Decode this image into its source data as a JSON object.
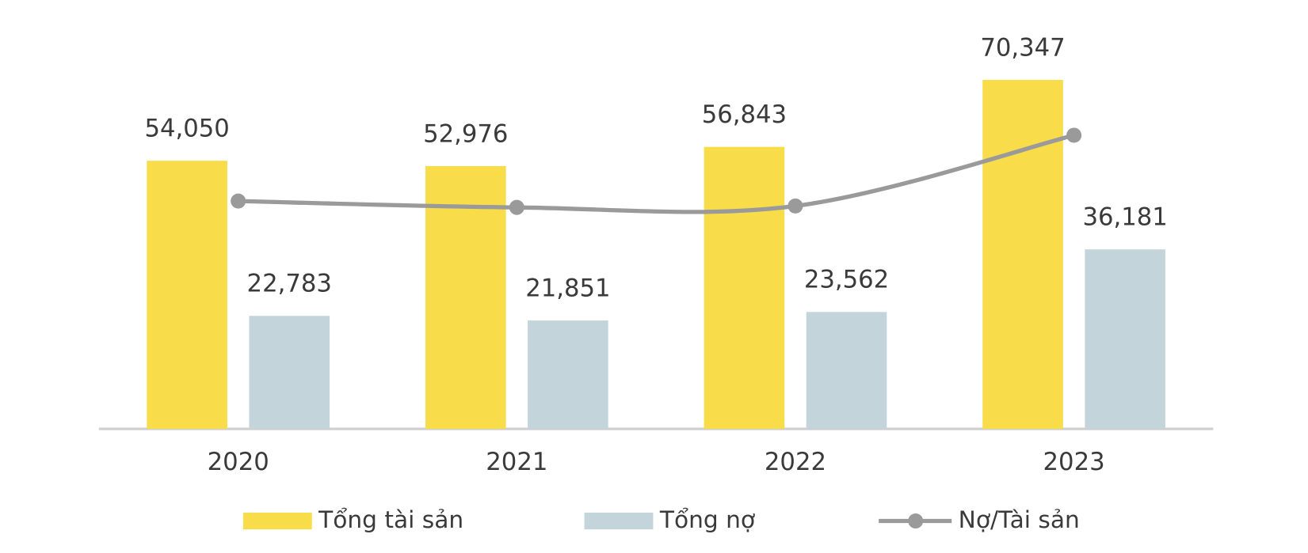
{
  "chart_data": {
    "type": "bar",
    "categories": [
      "2020",
      "2021",
      "2022",
      "2023"
    ],
    "ylim": [
      0,
      80000
    ],
    "y2lim": [
      10,
      66
    ],
    "series": [
      {
        "name": "Tổng tài sản",
        "color": "#F8DC4A",
        "values": [
          54050,
          52976,
          56843,
          70347
        ],
        "value_labels": [
          "54,050",
          "52,976",
          "56,843",
          "70,347"
        ]
      },
      {
        "name": "Tổng nợ",
        "color": "#C3D4DA",
        "values": [
          22783,
          21851,
          23562,
          36181
        ],
        "value_labels": [
          "22,783",
          "21,851",
          "23,562",
          "36,181"
        ]
      },
      {
        "name": "Nợ/Tài sản",
        "color": "#9A9A9A",
        "type": "line",
        "axis": "y2",
        "values": [
          42.15,
          41.25,
          41.45,
          51.43
        ]
      }
    ]
  }
}
